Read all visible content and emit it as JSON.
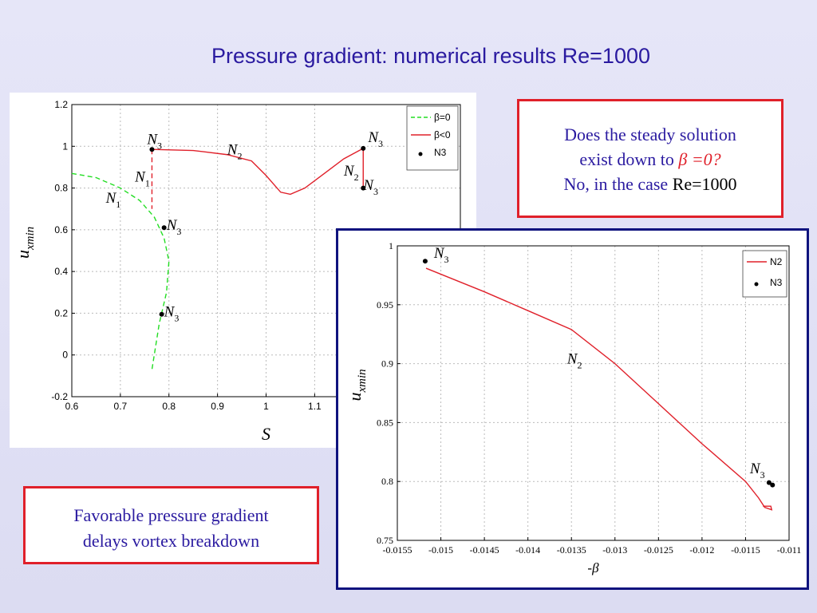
{
  "slide": {
    "title": "Pressure gradient: numerical results Re=1000",
    "box_question_line1": "Does the steady solution",
    "box_question_line2a": "exist down to ",
    "box_question_beta": "β =0?",
    "box_answer_a": "No, in the case ",
    "box_answer_b": "Re=1000",
    "box_favorable_line1": "Favorable pressure gradient",
    "box_favorable_line2": "delays vortex breakdown"
  },
  "colors": {
    "title": "#2a1aa0",
    "curve": "#e0202a",
    "beta0": "#22dd22",
    "box_border": "#e0202a",
    "frame": "#0f137e"
  },
  "chart_data": [
    {
      "type": "line",
      "xlabel": "S",
      "ylabel_main": "u",
      "ylabel_sub": "xmin",
      "xlim": [
        0.6,
        1.4
      ],
      "ylim": [
        -0.2,
        1.2
      ],
      "xticks": [
        "0.6",
        "0.7",
        "0.8",
        "0.9",
        "1",
        "1.1"
      ],
      "yticks": [
        "-0.2",
        "0",
        "0.2",
        "0.4",
        "0.6",
        "0.8",
        "1",
        "1.2"
      ],
      "grid": true,
      "legend": {
        "position": "top-right",
        "entries": [
          "β=0",
          "β<0",
          "N3"
        ]
      },
      "series": [
        {
          "name": "β=0",
          "style": "dashed",
          "color": "#22dd22",
          "x": [
            0.6,
            0.65,
            0.7,
            0.74,
            0.77,
            0.79,
            0.8,
            0.795,
            0.78,
            0.765
          ],
          "y": [
            0.87,
            0.85,
            0.8,
            0.74,
            0.66,
            0.56,
            0.45,
            0.3,
            0.15,
            -0.07
          ]
        },
        {
          "name": "β<0",
          "style": "solid",
          "color": "#e0202a",
          "x": [
            0.765,
            0.85,
            0.92,
            0.97,
            1.0,
            1.03,
            1.05,
            1.08,
            1.12,
            1.16,
            1.2
          ],
          "y": [
            0.985,
            0.98,
            0.96,
            0.93,
            0.86,
            0.78,
            0.77,
            0.8,
            0.87,
            0.94,
            0.99
          ]
        },
        {
          "name": "red-drop-left",
          "style": "dashed",
          "color": "#e0202a",
          "x": [
            0.765,
            0.765
          ],
          "y": [
            0.985,
            0.7
          ]
        },
        {
          "name": "red-drop-right",
          "style": "solid",
          "color": "#e0202a",
          "x": [
            1.2,
            1.2
          ],
          "y": [
            0.99,
            0.8
          ]
        }
      ],
      "markers": [
        {
          "x": 0.765,
          "y": 0.985
        },
        {
          "x": 0.79,
          "y": 0.61
        },
        {
          "x": 0.785,
          "y": 0.195
        },
        {
          "x": 1.2,
          "y": 0.99
        },
        {
          "x": 1.2,
          "y": 0.8
        }
      ],
      "annotations": [
        {
          "main": "N",
          "sub": "3",
          "x": 0.755,
          "y": 1.01
        },
        {
          "main": "N",
          "sub": "1",
          "x": 0.73,
          "y": 0.83
        },
        {
          "main": "N",
          "sub": "1",
          "x": 0.67,
          "y": 0.73
        },
        {
          "main": "N",
          "sub": "2",
          "x": 0.92,
          "y": 0.96
        },
        {
          "main": "N",
          "sub": "3",
          "x": 0.795,
          "y": 0.6
        },
        {
          "main": "N",
          "sub": "3",
          "x": 0.79,
          "y": 0.185
        },
        {
          "main": "N",
          "sub": "2",
          "x": 1.16,
          "y": 0.86
        },
        {
          "main": "N",
          "sub": "3",
          "x": 1.21,
          "y": 1.02
        },
        {
          "main": "N",
          "sub": "3",
          "x": 1.2,
          "y": 0.79
        }
      ]
    },
    {
      "type": "line",
      "xlabel": "-β",
      "ylabel_main": "u",
      "ylabel_sub": "xmin",
      "xlim": [
        -0.0155,
        -0.011
      ],
      "ylim": [
        0.75,
        1.0
      ],
      "xticks": [
        "-0.0155",
        "-0.015",
        "-0.0145",
        "-0.014",
        "-0.0135",
        "-0.013",
        "-0.0125",
        "-0.012",
        "-0.0115",
        "-0.011"
      ],
      "yticks": [
        "0.75",
        "0.8",
        "0.85",
        "0.9",
        "0.95",
        "1"
      ],
      "grid": true,
      "legend": {
        "position": "top-right",
        "entries": [
          "N2",
          "N3"
        ]
      },
      "series": [
        {
          "name": "N2",
          "style": "solid",
          "color": "#e0202a",
          "x": [
            -0.01517,
            -0.0145,
            -0.014,
            -0.0135,
            -0.013,
            -0.0125,
            -0.012,
            -0.0115,
            -0.01135,
            -0.01128,
            -0.0112,
            -0.01121,
            -0.0113
          ],
          "y": [
            0.981,
            0.961,
            0.945,
            0.929,
            0.9,
            0.866,
            0.832,
            0.8,
            0.786,
            0.778,
            0.776,
            0.779,
            0.779
          ]
        }
      ],
      "markers": [
        {
          "x": -0.01518,
          "y": 0.987
        },
        {
          "x": -0.01123,
          "y": 0.799
        },
        {
          "x": -0.01119,
          "y": 0.797
        }
      ],
      "annotations": [
        {
          "main": "N",
          "sub": "3",
          "x": -0.01508,
          "y": 0.99
        },
        {
          "main": "N",
          "sub": "2",
          "x": -0.01355,
          "y": 0.9
        },
        {
          "main": "N",
          "sub": "3",
          "x": -0.01145,
          "y": 0.807
        }
      ]
    }
  ]
}
